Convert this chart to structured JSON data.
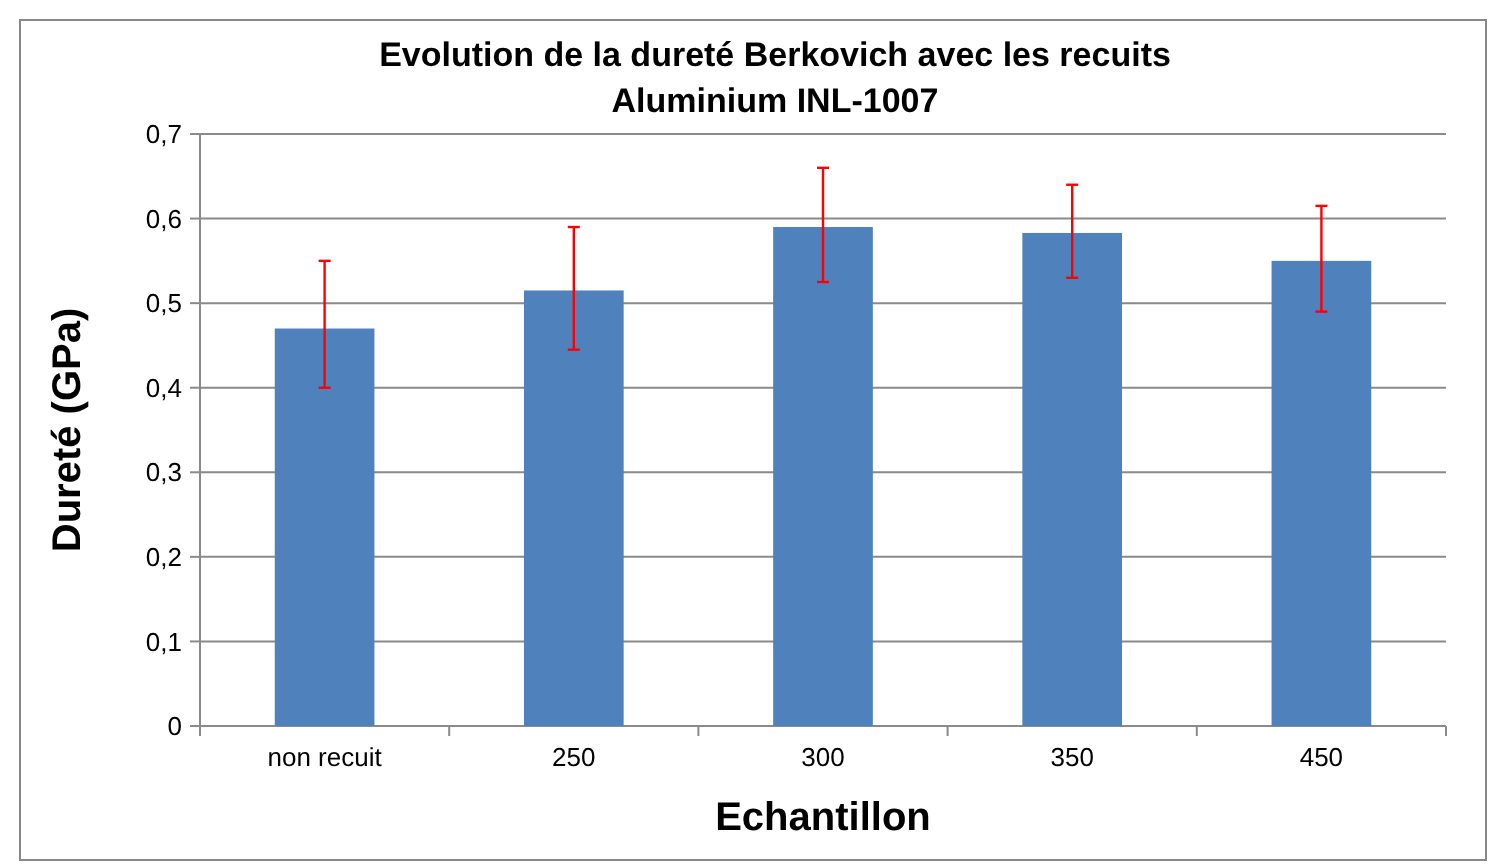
{
  "chart_data": {
    "type": "bar",
    "title": "Evolution de la dureté Berkovich avec les recuits",
    "subtitle": "Aluminium INL-1007",
    "xlabel": "Echantillon",
    "ylabel": "Dureté (GPa)",
    "categories": [
      "non recuit",
      "250",
      "300",
      "350",
      "450"
    ],
    "values": [
      0.47,
      0.515,
      0.59,
      0.583,
      0.55
    ],
    "errors": [
      [
        0.4,
        0.55
      ],
      [
        0.445,
        0.59
      ],
      [
        0.525,
        0.66
      ],
      [
        0.53,
        0.64
      ],
      [
        0.49,
        0.615
      ]
    ],
    "color": "#4f81bd",
    "ylim": [
      0,
      0.7
    ],
    "yticks": [
      0,
      {
        "value": 0.1,
        "label": "0,1"
      },
      {
        "value": 0.2,
        "label": "0,2"
      },
      {
        "value": 0.3,
        "label": "0,3"
      },
      {
        "value": 0.4,
        "label": "0,4"
      },
      {
        "value": 0.5,
        "label": "0,5"
      },
      {
        "value": 0.6,
        "label": "0,6"
      },
      {
        "value": 0.7,
        "label": "0,7"
      }
    ],
    "grid": "y"
  }
}
